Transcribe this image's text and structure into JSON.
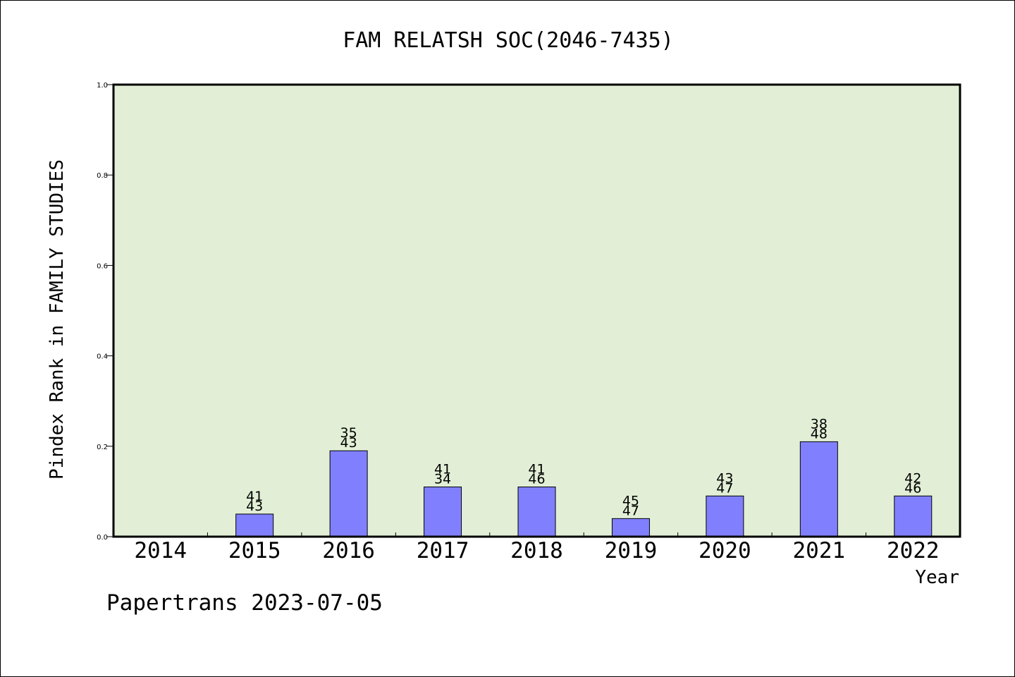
{
  "chart_data": {
    "type": "bar",
    "title": "FAM RELATSH SOC(2046-7435)",
    "xlabel": "Year",
    "ylabel": "Pindex Rank in FAMILY STUDIES",
    "footer": "Papertrans 2023-07-05",
    "ylim": [
      0,
      1.0
    ],
    "yticks": [
      "0.0",
      "0.2",
      "0.4",
      "0.6",
      "0.8",
      "1.0"
    ],
    "categories": [
      "2014",
      "2015",
      "2016",
      "2017",
      "2018",
      "2019",
      "2020",
      "2021",
      "2022"
    ],
    "values": [
      0,
      0.05,
      0.19,
      0.11,
      0.11,
      0.04,
      0.09,
      0.21,
      0.09
    ],
    "labels_top": [
      "",
      "41",
      "35",
      "41",
      "41",
      "45",
      "43",
      "38",
      "42"
    ],
    "labels_bottom": [
      "",
      "43",
      "43",
      "34",
      "46",
      "47",
      "47",
      "48",
      "46"
    ],
    "grid": false,
    "colors": {
      "plot_bg": "#e2efd6",
      "bar_fill": "#8080ff",
      "bar_stroke": "#000000",
      "axis": "#000000"
    }
  }
}
